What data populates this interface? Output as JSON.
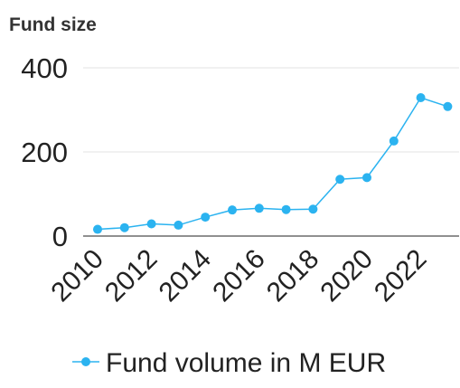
{
  "chart_data": {
    "type": "line",
    "title": "Fund size",
    "x": [
      2010,
      2011,
      2012,
      2013,
      2014,
      2015,
      2016,
      2017,
      2018,
      2019,
      2020,
      2021,
      2022,
      2023
    ],
    "series": [
      {
        "name": "Fund volume in M EUR",
        "values": [
          16,
          20,
          29,
          26,
          45,
          62,
          66,
          63,
          64,
          135,
          139,
          226,
          329,
          308
        ],
        "color": "#2bb3f0"
      }
    ],
    "xticks": [
      2010,
      2012,
      2014,
      2016,
      2018,
      2020,
      2022
    ],
    "yticks": [
      0,
      200,
      400
    ],
    "ylim": [
      0,
      400
    ],
    "xlabel": "",
    "ylabel": "",
    "grid": true,
    "legend_position": "bottom"
  }
}
